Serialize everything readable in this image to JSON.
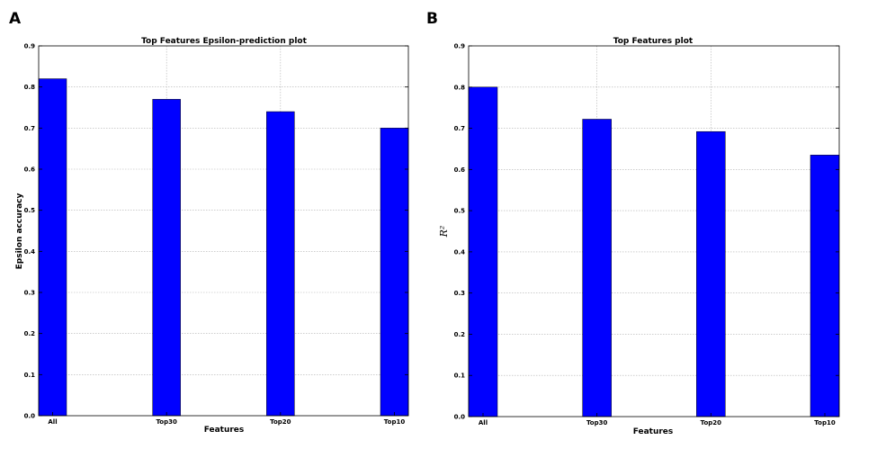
{
  "chart_data": [
    {
      "panel_label": "A",
      "type": "bar",
      "title": "Top Features Epsilon-prediction plot",
      "xlabel": "Features",
      "ylabel": "Epsilon accuracy",
      "ylabel_style": "bold",
      "categories": [
        "All",
        "Top30",
        "Top20",
        "Top10"
      ],
      "values": [
        0.82,
        0.77,
        0.74,
        0.7
      ],
      "ylim": [
        0,
        0.9
      ],
      "yticks": [
        "0.0",
        "0.1",
        "0.2",
        "0.3",
        "0.4",
        "0.5",
        "0.6",
        "0.7",
        "0.8",
        "0.9"
      ],
      "grid": true,
      "bar_color": "#0000ff"
    },
    {
      "panel_label": "B",
      "type": "bar",
      "title": "Top Features plot",
      "xlabel": "Features",
      "ylabel": "R²",
      "ylabel_style": "italic",
      "categories": [
        "All",
        "Top30",
        "Top20",
        "Top10"
      ],
      "values": [
        0.8,
        0.722,
        0.692,
        0.635
      ],
      "ylim": [
        0,
        0.9
      ],
      "yticks": [
        "0.0",
        "0.1",
        "0.2",
        "0.3",
        "0.4",
        "0.5",
        "0.6",
        "0.7",
        "0.8",
        "0.9"
      ],
      "grid": true,
      "bar_color": "#0000ff"
    }
  ]
}
